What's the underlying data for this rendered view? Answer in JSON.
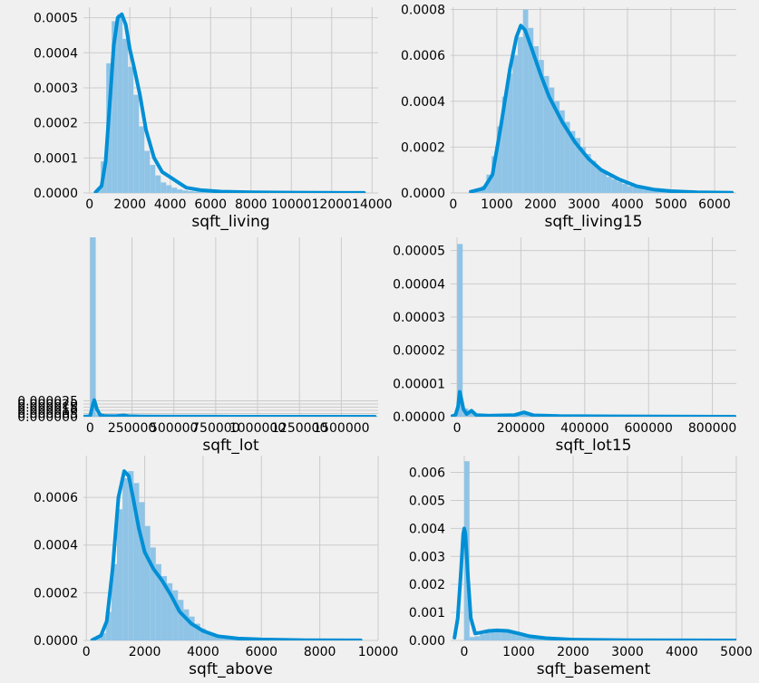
{
  "style": {
    "bar_color": "#8fc4e6",
    "line_color": "#008fd5",
    "grid_color": "#cbcbcb",
    "background": "#f0f0f0"
  },
  "chart_data": [
    {
      "type": "histogram",
      "xlabel": "sqft_living",
      "xlim": [
        -300,
        14300
      ],
      "ylim": [
        0,
        0.00053
      ],
      "xticks": [
        0,
        2000,
        4000,
        6000,
        8000,
        10000,
        12000,
        14000
      ],
      "xtick_labels": [
        "0",
        "2000",
        "4000",
        "6000",
        "8000",
        "10000",
        "12000",
        "14000"
      ],
      "yticks": [
        0,
        0.0001,
        0.0002,
        0.0003,
        0.0004,
        0.0005
      ],
      "ytick_labels": [
        "0.0000",
        "0.0001",
        "0.0002",
        "0.0003",
        "0.0004",
        "0.0005"
      ],
      "bins": {
        "start": 290,
        "width": 270
      },
      "hist": [
        1e-05,
        9e-05,
        0.00037,
        0.00049,
        0.00051,
        0.00044,
        0.00036,
        0.00028,
        0.00019,
        0.00012,
        8e-05,
        5e-05,
        3e-05,
        2.2e-05,
        1.5e-05,
        1e-05,
        7e-06,
        5e-06,
        4e-06,
        3e-06,
        2e-06,
        2e-06,
        1.5e-06,
        1e-06
      ],
      "kde": [
        [
          300,
          2e-06
        ],
        [
          600,
          2e-05
        ],
        [
          800,
          9e-05
        ],
        [
          1000,
          0.00025
        ],
        [
          1200,
          0.00042
        ],
        [
          1400,
          0.0005
        ],
        [
          1600,
          0.00051
        ],
        [
          1800,
          0.00048
        ],
        [
          2000,
          0.00041
        ],
        [
          2200,
          0.00036
        ],
        [
          2500,
          0.00028
        ],
        [
          2800,
          0.00018
        ],
        [
          3200,
          0.0001
        ],
        [
          3600,
          6e-05
        ],
        [
          4000,
          4.5e-05
        ],
        [
          4400,
          3e-05
        ],
        [
          4800,
          1.5e-05
        ],
        [
          5500,
          8e-06
        ],
        [
          6500,
          4e-06
        ],
        [
          8000,
          2e-06
        ],
        [
          10000,
          1e-06
        ],
        [
          13600,
          3e-07
        ]
      ]
    },
    {
      "type": "histogram",
      "xlabel": "sqft_living15",
      "xlim": [
        -60,
        6500
      ],
      "ylim": [
        0,
        0.00081
      ],
      "xticks": [
        0,
        1000,
        2000,
        3000,
        4000,
        5000,
        6000
      ],
      "xtick_labels": [
        "0",
        "1000",
        "2000",
        "3000",
        "4000",
        "5000",
        "6000"
      ],
      "yticks": [
        0,
        0.0002,
        0.0004,
        0.0006,
        0.0008
      ],
      "ytick_labels": [
        "0.0000",
        "0.0002",
        "0.0004",
        "0.0006",
        "0.0008"
      ],
      "bins": {
        "start": 400,
        "width": 120
      },
      "hist": [
        5e-06,
        1e-05,
        3e-05,
        8e-05,
        0.00016,
        0.00029,
        0.00042,
        0.00052,
        0.0006,
        0.00068,
        0.0008,
        0.00072,
        0.00064,
        0.00058,
        0.00051,
        0.00046,
        0.0004,
        0.00036,
        0.00031,
        0.00027,
        0.00024,
        0.0002,
        0.00017,
        0.00014,
        0.00011,
        9e-05,
        7e-05,
        6e-05,
        5e-05,
        4e-05,
        3e-05,
        2.5e-05,
        2e-05,
        1.5e-05,
        1.2e-05,
        1e-05,
        8e-06,
        6e-06,
        5e-06,
        4e-06
      ],
      "kde": [
        [
          400,
          5e-06
        ],
        [
          700,
          2e-05
        ],
        [
          900,
          8e-05
        ],
        [
          1100,
          0.0003
        ],
        [
          1300,
          0.00054
        ],
        [
          1450,
          0.00068
        ],
        [
          1550,
          0.00073
        ],
        [
          1650,
          0.00071
        ],
        [
          1800,
          0.00063
        ],
        [
          2000,
          0.00052
        ],
        [
          2200,
          0.00042
        ],
        [
          2500,
          0.00031
        ],
        [
          2800,
          0.00022
        ],
        [
          3100,
          0.00015
        ],
        [
          3400,
          0.0001
        ],
        [
          3800,
          6e-05
        ],
        [
          4200,
          3e-05
        ],
        [
          4600,
          1.5e-05
        ],
        [
          5000,
          8e-06
        ],
        [
          5600,
          3e-06
        ],
        [
          6400,
          1e-06
        ]
      ]
    },
    {
      "type": "histogram",
      "xlabel": "sqft_lot",
      "xlim": [
        -40000,
        1720000
      ],
      "ylim": [
        0,
        0.000282
      ],
      "xticks": [
        0,
        250000,
        500000,
        750000,
        1000000,
        1250000,
        1500000
      ],
      "xtick_labels": [
        "0",
        "250000",
        "500000",
        "750000",
        "1000000",
        "1250000",
        "1500000"
      ],
      "yticks": [
        0,
        5e-06,
        1e-05,
        1.5e-05,
        2e-05,
        2.5e-05
      ],
      "ytick_labels": [
        "0.000000",
        "0.000005",
        "0.000010",
        "0.000015",
        "0.000020",
        "0.000025"
      ],
      "bins": {
        "start": 500,
        "width": 33000
      },
      "hist": [
        0.000282,
        3.5e-06,
        1.5e-06,
        1e-06,
        6e-07,
        8e-07,
        5e-07,
        3e-07,
        2e-07,
        1e-07
      ],
      "kde": [
        [
          -40000,
          0
        ],
        [
          -20000,
          3e-07
        ],
        [
          0,
          1e-06
        ],
        [
          15000,
          1.8e-05
        ],
        [
          25000,
          2.6e-05
        ],
        [
          40000,
          1.2e-05
        ],
        [
          60000,
          2.5e-06
        ],
        [
          90000,
          1e-06
        ],
        [
          150000,
          8e-07
        ],
        [
          200000,
          2e-06
        ],
        [
          230000,
          8e-07
        ],
        [
          300000,
          4e-07
        ],
        [
          450000,
          2e-07
        ],
        [
          700000,
          1e-07
        ],
        [
          1000000,
          5e-08
        ],
        [
          1700000,
          0
        ]
      ]
    },
    {
      "type": "histogram",
      "xlabel": "sqft_lot15",
      "xlim": [
        -20000,
        875000
      ],
      "ylim": [
        0,
        5.4e-05
      ],
      "xticks": [
        0,
        200000,
        400000,
        600000,
        800000
      ],
      "xtick_labels": [
        "0",
        "200000",
        "400000",
        "600000",
        "800000"
      ],
      "yticks": [
        0,
        1e-05,
        2e-05,
        3e-05,
        4e-05,
        5e-05
      ],
      "ytick_labels": [
        "0.00000",
        "0.00001",
        "0.00002",
        "0.00003",
        "0.00004",
        "0.00005"
      ],
      "bins": {
        "start": 650,
        "width": 17000
      },
      "hist": [
        5.2e-05,
        2.5e-06,
        1.2e-06,
        8e-07,
        5e-07,
        4e-07,
        3e-07,
        2e-07,
        2e-07,
        1e-07,
        1e-07,
        8e-07,
        1.2e-06,
        3e-07
      ],
      "kde": [
        [
          -20000,
          0
        ],
        [
          -5000,
          5e-07
        ],
        [
          3000,
          3e-06
        ],
        [
          8000,
          7.5e-06
        ],
        [
          13000,
          5.5e-06
        ],
        [
          20000,
          2.2e-06
        ],
        [
          30000,
          8e-07
        ],
        [
          45000,
          1.8e-06
        ],
        [
          60000,
          5e-07
        ],
        [
          100000,
          3e-07
        ],
        [
          180000,
          5e-07
        ],
        [
          210000,
          1.3e-06
        ],
        [
          240000,
          4e-07
        ],
        [
          320000,
          2e-07
        ],
        [
          500000,
          1e-07
        ],
        [
          870000,
          0
        ]
      ]
    },
    {
      "type": "histogram",
      "xlabel": "sqft_above",
      "xlim": [
        -100,
        10000
      ],
      "ylim": [
        0,
        0.000775
      ],
      "xticks": [
        0,
        2000,
        4000,
        6000,
        8000,
        10000
      ],
      "xtick_labels": [
        "0",
        "2000",
        "4000",
        "6000",
        "8000",
        "10000"
      ],
      "yticks": [
        0,
        0.0002,
        0.0004,
        0.0006
      ],
      "ytick_labels": [
        "0.0000",
        "0.0002",
        "0.0004",
        "0.0006"
      ],
      "bins": {
        "start": 290,
        "width": 190
      },
      "hist": [
        1e-05,
        3e-05,
        0.00012,
        0.00032,
        0.00055,
        0.00068,
        0.00071,
        0.00066,
        0.00058,
        0.00048,
        0.00039,
        0.00032,
        0.00027,
        0.00024,
        0.00021,
        0.00017,
        0.00013,
        0.0001,
        7e-05,
        5e-05,
        3e-05,
        2e-05,
        1.5e-05,
        1e-05,
        8e-06,
        6e-06,
        5e-06,
        4e-06,
        3e-06,
        2e-06
      ],
      "kde": [
        [
          200,
          2e-06
        ],
        [
          500,
          2e-05
        ],
        [
          700,
          8e-05
        ],
        [
          900,
          0.0003
        ],
        [
          1100,
          0.0006
        ],
        [
          1300,
          0.00071
        ],
        [
          1450,
          0.00069
        ],
        [
          1600,
          0.0006
        ],
        [
          1800,
          0.00047
        ],
        [
          2000,
          0.00037
        ],
        [
          2300,
          0.0003
        ],
        [
          2600,
          0.00025
        ],
        [
          2900,
          0.00019
        ],
        [
          3200,
          0.00012
        ],
        [
          3600,
          7e-05
        ],
        [
          4000,
          4e-05
        ],
        [
          4500,
          1.8e-05
        ],
        [
          5200,
          8e-06
        ],
        [
          6000,
          4e-06
        ],
        [
          7500,
          1e-06
        ],
        [
          9400,
          3e-07
        ]
      ]
    },
    {
      "type": "histogram",
      "xlabel": "sqft_basement",
      "xlim": [
        -250,
        5000
      ],
      "ylim": [
        0,
        0.0066
      ],
      "xticks": [
        0,
        1000,
        2000,
        3000,
        4000,
        5000
      ],
      "xtick_labels": [
        "0",
        "1000",
        "2000",
        "3000",
        "4000",
        "5000"
      ],
      "yticks": [
        0,
        0.001,
        0.002,
        0.003,
        0.004,
        0.005,
        0.006
      ],
      "ytick_labels": [
        "0.000",
        "0.001",
        "0.002",
        "0.003",
        "0.004",
        "0.005",
        "0.006"
      ],
      "bins": {
        "start": 0,
        "width": 96
      },
      "hist": [
        0.0064,
        0.00012,
        0.00015,
        0.00022,
        0.0003,
        0.00035,
        0.00036,
        0.00036,
        0.00035,
        0.00032,
        0.00027,
        0.00022,
        0.00017,
        0.00013,
        0.0001,
        8e-05,
        6e-05,
        5e-05,
        4e-05,
        3e-05,
        2.5e-05,
        2e-05,
        1.5e-05,
        1e-05
      ],
      "kde": [
        [
          -180,
          0.0001
        ],
        [
          -120,
          0.0008
        ],
        [
          -60,
          0.0025
        ],
        [
          -20,
          0.0038
        ],
        [
          0,
          0.004
        ],
        [
          20,
          0.0038
        ],
        [
          70,
          0.0022
        ],
        [
          120,
          0.0008
        ],
        [
          200,
          0.00025
        ],
        [
          300,
          0.00028
        ],
        [
          450,
          0.00034
        ],
        [
          600,
          0.00036
        ],
        [
          800,
          0.00034
        ],
        [
          1000,
          0.00025
        ],
        [
          1200,
          0.00015
        ],
        [
          1500,
          8e-05
        ],
        [
          2000,
          3e-05
        ],
        [
          3000,
          8e-06
        ],
        [
          4000,
          3e-06
        ],
        [
          5000,
          1e-06
        ]
      ]
    }
  ]
}
